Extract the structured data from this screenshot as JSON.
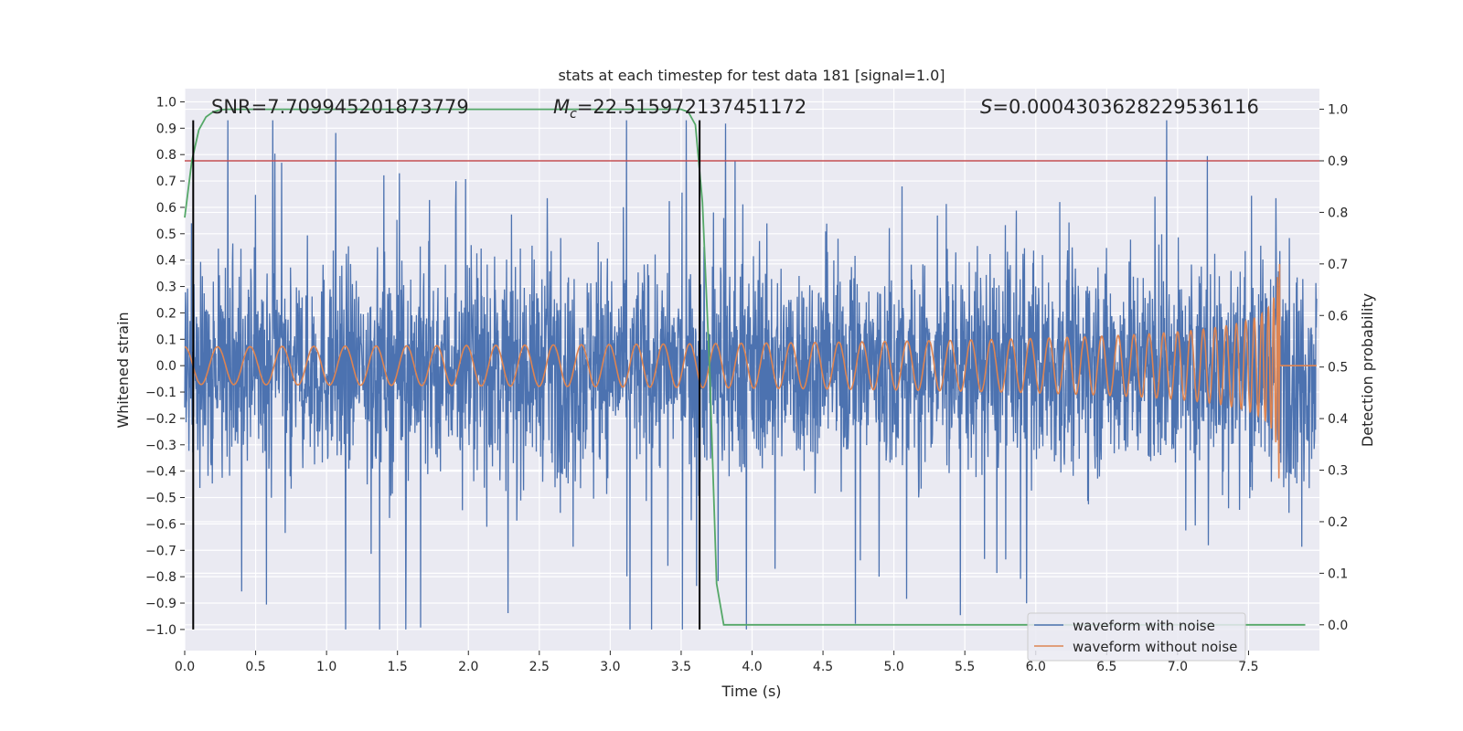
{
  "chart_data": {
    "type": "line",
    "title": "stats at each timestep for test data 181 [signal=1.0]",
    "xlabel": "Time (s)",
    "ylabel_left": "Whitened strain",
    "ylabel_right": "Detection probability",
    "xlim": [
      0.0,
      8.0
    ],
    "ylim_left": [
      -1.08,
      1.05
    ],
    "ylim_right": [
      -0.05,
      1.04
    ],
    "x_ticks": [
      "0.0",
      "0.5",
      "1.0",
      "1.5",
      "2.0",
      "2.5",
      "3.0",
      "3.5",
      "4.0",
      "4.5",
      "5.0",
      "5.5",
      "6.0",
      "6.5",
      "7.0",
      "7.5"
    ],
    "y_ticks_left": [
      "1.0",
      "0.9",
      "0.8",
      "0.7",
      "0.6",
      "0.5",
      "0.4",
      "0.3",
      "0.2",
      "0.1",
      "0.0",
      "−0.1",
      "−0.2",
      "−0.3",
      "−0.4",
      "−0.5",
      "−0.6",
      "−0.7",
      "−0.8",
      "−0.9",
      "−1.0"
    ],
    "y_ticks_right": [
      "1.0",
      "0.9",
      "0.8",
      "0.7",
      "0.6",
      "0.5",
      "0.4",
      "0.3",
      "0.2",
      "0.1",
      "0.0"
    ],
    "grid": true,
    "annotations": {
      "snr": "SNR=7.709945201873779",
      "mc_symbol": "M",
      "mc_sub": "c",
      "mc_value": "=22.515972137451172",
      "s_symbol": "S",
      "s_value": "=0.0004303628229536116"
    },
    "series": [
      {
        "name": "waveform with noise",
        "axis": "left",
        "color": "#4c72b0",
        "type": "noise",
        "seed": 181,
        "approx_range": [
          -1.0,
          0.93
        ]
      },
      {
        "name": "waveform without noise",
        "axis": "left",
        "color": "#dd8452",
        "type": "chirp",
        "x_end": 7.72,
        "peak_amplitude": 0.48
      },
      {
        "name": "detection probability",
        "axis": "right",
        "color": "#55a868",
        "x": [
          0.0,
          0.05,
          0.1,
          0.15,
          0.2,
          0.25,
          0.3,
          0.4,
          3.5,
          3.55,
          3.6,
          3.65,
          3.7,
          3.75,
          3.8,
          3.9,
          7.9
        ],
        "y": [
          0.79,
          0.9,
          0.96,
          0.985,
          0.995,
          0.999,
          1.0,
          1.0,
          1.0,
          0.995,
          0.97,
          0.82,
          0.5,
          0.08,
          0.0,
          0.0,
          0.0
        ]
      },
      {
        "name": "threshold",
        "axis": "right",
        "color": "#c44e52",
        "type": "hline",
        "y": 0.9
      }
    ],
    "vlines": [
      0.06,
      3.63
    ],
    "vline_range": [
      -1.0,
      0.93
    ],
    "legend_position": "lower-right",
    "legend": [
      "waveform with noise",
      "waveform without noise"
    ]
  }
}
